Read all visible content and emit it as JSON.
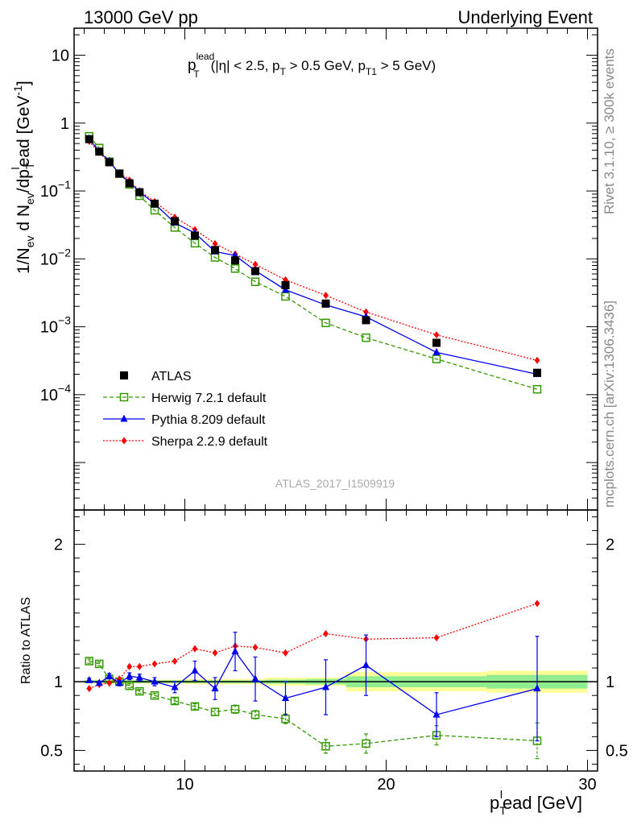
{
  "header": {
    "left": "13000 GeV pp",
    "right": "Underlying Event"
  },
  "side_labels": {
    "rivet": "Rivet 3.1.10, ≥ 300k events",
    "mcplots": "mcplots.cern.ch [arXiv:1306.3436]"
  },
  "watermark": "ATLAS_2017_I1509919",
  "chart_data": [
    {
      "type": "scatter",
      "panel": "main",
      "title_parts": {
        "p": "p",
        "sup": "lead",
        "sub": "T",
        "cuts_a": "(|η| < 2.5, p",
        "cuts_b": " > 0.5 GeV, p",
        "cuts_sub2": "T1",
        "cuts_c": " > 5 GeV)"
      },
      "ylabel": "1/N_ev d N_ev/dp_T^lead [GeV^-1]",
      "ylabel_parts": {
        "a": "1/N",
        "a_sub": "ev",
        "b": " d N",
        "b_sub": "ev",
        "c": "/dp",
        "c_sub": "T",
        "c_sup": "l",
        "d": "ead [GeV",
        "d_sup": "-1",
        "e": "]"
      },
      "y_scale": "log",
      "ylim": [
        2e-06,
        25
      ],
      "xlim": [
        4.5,
        30.5
      ],
      "y_ticks": [
        {
          "v": 10,
          "label": "10"
        },
        {
          "v": 1,
          "label": "1"
        },
        {
          "v": 0.1,
          "label": "10",
          "exp": "−1"
        },
        {
          "v": 0.01,
          "label": "10",
          "exp": "−2"
        },
        {
          "v": 0.001,
          "label": "10",
          "exp": "−3"
        },
        {
          "v": 0.0001,
          "label": "10",
          "exp": "−4"
        }
      ],
      "x": [
        5.25,
        5.75,
        6.25,
        6.75,
        7.25,
        7.75,
        8.5,
        9.5,
        10.5,
        11.5,
        12.5,
        13.5,
        15,
        17,
        19,
        22.5,
        27.5
      ],
      "legend": {
        "placement": "middle-left"
      },
      "series": [
        {
          "name": "ATLAS",
          "color": "#000000",
          "marker": "square",
          "line": "none",
          "values": [
            0.58,
            0.38,
            0.265,
            0.18,
            0.13,
            0.096,
            0.065,
            0.036,
            0.022,
            0.0135,
            0.0095,
            0.0066,
            0.0041,
            0.0022,
            0.00125,
            0.00058,
            0.00021
          ]
        },
        {
          "name": "Herwig 7.2.1 default",
          "color": "#339900",
          "marker": "open-square",
          "line": "dashed",
          "values": [
            0.64,
            0.43,
            0.27,
            0.18,
            0.125,
            0.085,
            0.052,
            0.029,
            0.017,
            0.0105,
            0.0072,
            0.0046,
            0.0028,
            0.00114,
            0.00069,
            0.000335,
            0.00012
          ]
        },
        {
          "name": "Pythia 8.209 default",
          "color": "#0000ee",
          "marker": "triangle",
          "line": "solid",
          "values": [
            0.59,
            0.38,
            0.275,
            0.18,
            0.135,
            0.097,
            0.065,
            0.034,
            0.024,
            0.0128,
            0.0112,
            0.0067,
            0.0035,
            0.0021,
            0.0014,
            0.00042,
            0.0002
          ]
        },
        {
          "name": "Sherpa 2.2.9 default",
          "color": "#ff0000",
          "marker": "diamond",
          "line": "dotted",
          "values": [
            0.54,
            0.37,
            0.26,
            0.185,
            0.145,
            0.1,
            0.07,
            0.041,
            0.027,
            0.0168,
            0.0118,
            0.0083,
            0.0049,
            0.0029,
            0.00165,
            0.00076,
            0.00032
          ]
        }
      ]
    },
    {
      "type": "scatter",
      "panel": "ratio",
      "ylabel": "Ratio to ATLAS",
      "ylim": [
        0.35,
        2.25
      ],
      "xlim": [
        4.5,
        30.5
      ],
      "xlabel": "p_T^lead [GeV]",
      "xlabel_parts": {
        "a": "p",
        "a_sub": "T",
        "a_sup": "l",
        "b": "ead [GeV]"
      },
      "x_ticks": [
        10,
        20,
        30
      ],
      "y_ticks": [
        {
          "v": 0.5,
          "label": "0.5"
        },
        {
          "v": 1,
          "label": "1"
        },
        {
          "v": 2,
          "label": "2"
        }
      ],
      "x": [
        5.25,
        5.75,
        6.25,
        6.75,
        7.25,
        7.75,
        8.5,
        9.5,
        10.5,
        11.5,
        12.5,
        13.5,
        15,
        17,
        19,
        22.5,
        27.5
      ],
      "bin_edges": [
        5,
        5.5,
        6,
        6.5,
        7,
        7.5,
        8,
        9,
        10,
        11,
        12,
        13,
        14,
        16,
        18,
        20,
        25,
        30
      ],
      "uncertainty_bands": {
        "stat_color": "#90ee90",
        "total_color": "#ffff99",
        "stat": [
          0.01,
          0.01,
          0.01,
          0.01,
          0.01,
          0.01,
          0.01,
          0.01,
          0.01,
          0.01,
          0.01,
          0.01,
          0.015,
          0.02,
          0.04,
          0.04,
          0.05,
          0.08
        ],
        "total": [
          0.015,
          0.015,
          0.015,
          0.015,
          0.015,
          0.015,
          0.015,
          0.015,
          0.02,
          0.02,
          0.02,
          0.02,
          0.03,
          0.03,
          0.07,
          0.07,
          0.08,
          0.12
        ]
      },
      "reference": {
        "value": 1,
        "color": "#000000"
      },
      "series": [
        {
          "name": "Herwig 7.2.1 default",
          "color": "#339900",
          "marker": "open-square",
          "line": "dashed",
          "values": [
            1.15,
            1.13,
            1.02,
            1.0,
            0.97,
            0.93,
            0.9,
            0.86,
            0.82,
            0.78,
            0.8,
            0.76,
            0.73,
            0.53,
            0.55,
            0.61,
            0.57
          ],
          "err": [
            0.015,
            0.015,
            0.015,
            0.015,
            0.015,
            0.015,
            0.015,
            0.02,
            0.02,
            0.025,
            0.03,
            0.03,
            0.035,
            0.05,
            0.07,
            0.07,
            0.13
          ]
        },
        {
          "name": "Pythia 8.209 default",
          "color": "#0000ee",
          "marker": "triangle",
          "line": "solid",
          "values": [
            1.01,
            0.99,
            1.04,
            0.99,
            1.04,
            1.03,
            1.0,
            0.96,
            1.08,
            0.95,
            1.22,
            1.02,
            0.88,
            0.96,
            1.12,
            0.76,
            0.95
          ],
          "err": [
            0.015,
            0.015,
            0.02,
            0.02,
            0.025,
            0.025,
            0.03,
            0.04,
            0.07,
            0.08,
            0.14,
            0.16,
            0.12,
            0.2,
            0.22,
            0.16,
            0.38
          ]
        },
        {
          "name": "Sherpa 2.2.9 default",
          "color": "#ff0000",
          "marker": "diamond",
          "line": "dotted",
          "values": [
            0.95,
            0.98,
            0.99,
            1.02,
            1.11,
            1.11,
            1.13,
            1.15,
            1.24,
            1.21,
            1.26,
            1.25,
            1.21,
            1.35,
            1.31,
            1.32,
            1.57
          ]
        },
        {
          "name": "ATLAS",
          "color": "#000000",
          "marker": "none",
          "line": "none",
          "values": []
        }
      ]
    }
  ]
}
